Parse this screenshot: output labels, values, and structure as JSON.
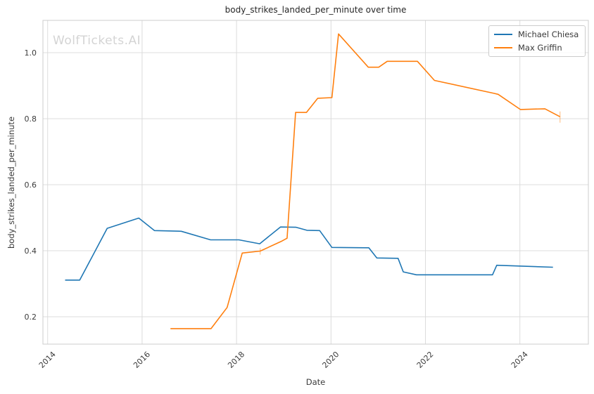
{
  "watermark": {
    "text": "WolfTickets.AI",
    "color": "#d4d4d4"
  },
  "chart_data": {
    "type": "line",
    "title": "body_strikes_landed_per_minute over time",
    "xlabel": "Date",
    "ylabel": "body_strikes_landed_per_minute",
    "grid": true,
    "legend_position": "upper right",
    "colors": {
      "background": "#ffffff",
      "grid": "#dcdcdc",
      "spine": "#cccccc",
      "tick_text": "#3b3b3b",
      "title_text": "#262626"
    },
    "x_axis": {
      "min": 2013.9,
      "max": 2025.45,
      "ticks": [
        2014,
        2016,
        2018,
        2020,
        2022,
        2024
      ]
    },
    "y_axis": {
      "min": 0.117,
      "max": 1.098,
      "ticks": [
        0.2,
        0.4,
        0.6,
        0.8,
        1.0
      ]
    },
    "series": [
      {
        "name": "Michael Chiesa",
        "color": "#1f77b4",
        "points": [
          [
            2014.37,
            0.311
          ],
          [
            2014.68,
            0.311
          ],
          [
            2015.26,
            0.468
          ],
          [
            2015.93,
            0.499
          ],
          [
            2016.26,
            0.461
          ],
          [
            2016.83,
            0.459
          ],
          [
            2017.45,
            0.433
          ],
          [
            2018.05,
            0.433
          ],
          [
            2018.49,
            0.421
          ],
          [
            2018.93,
            0.472
          ],
          [
            2019.26,
            0.471
          ],
          [
            2019.49,
            0.462
          ],
          [
            2019.76,
            0.461
          ],
          [
            2020.02,
            0.41
          ],
          [
            2020.8,
            0.409
          ],
          [
            2020.97,
            0.378
          ],
          [
            2021.42,
            0.377
          ],
          [
            2021.53,
            0.336
          ],
          [
            2021.81,
            0.327
          ],
          [
            2023.42,
            0.327
          ],
          [
            2023.51,
            0.356
          ],
          [
            2024.7,
            0.35
          ]
        ],
        "vertical_dashes": []
      },
      {
        "name": "Max Griffin",
        "color": "#ff7f0e",
        "points": [
          [
            2016.6,
            0.164
          ],
          [
            2017.46,
            0.164
          ],
          [
            2017.8,
            0.228
          ],
          [
            2018.12,
            0.393
          ],
          [
            2018.5,
            0.399
          ],
          [
            2018.94,
            0.428
          ],
          [
            2019.07,
            0.438
          ],
          [
            2019.25,
            0.819
          ],
          [
            2019.48,
            0.819
          ],
          [
            2019.72,
            0.862
          ],
          [
            2020.02,
            0.864
          ],
          [
            2020.16,
            1.057
          ],
          [
            2020.79,
            0.956
          ],
          [
            2021.01,
            0.956
          ],
          [
            2021.19,
            0.974
          ],
          [
            2021.83,
            0.974
          ],
          [
            2022.19,
            0.916
          ],
          [
            2023.45,
            0.877
          ],
          [
            2023.54,
            0.874
          ],
          [
            2024.01,
            0.828
          ],
          [
            2024.53,
            0.83
          ],
          [
            2024.85,
            0.806
          ]
        ],
        "vertical_dashes": [
          {
            "x": 2018.5,
            "y1": 0.388,
            "y2": 0.408
          },
          {
            "x": 2024.85,
            "y1": 0.788,
            "y2": 0.822
          }
        ]
      }
    ]
  }
}
